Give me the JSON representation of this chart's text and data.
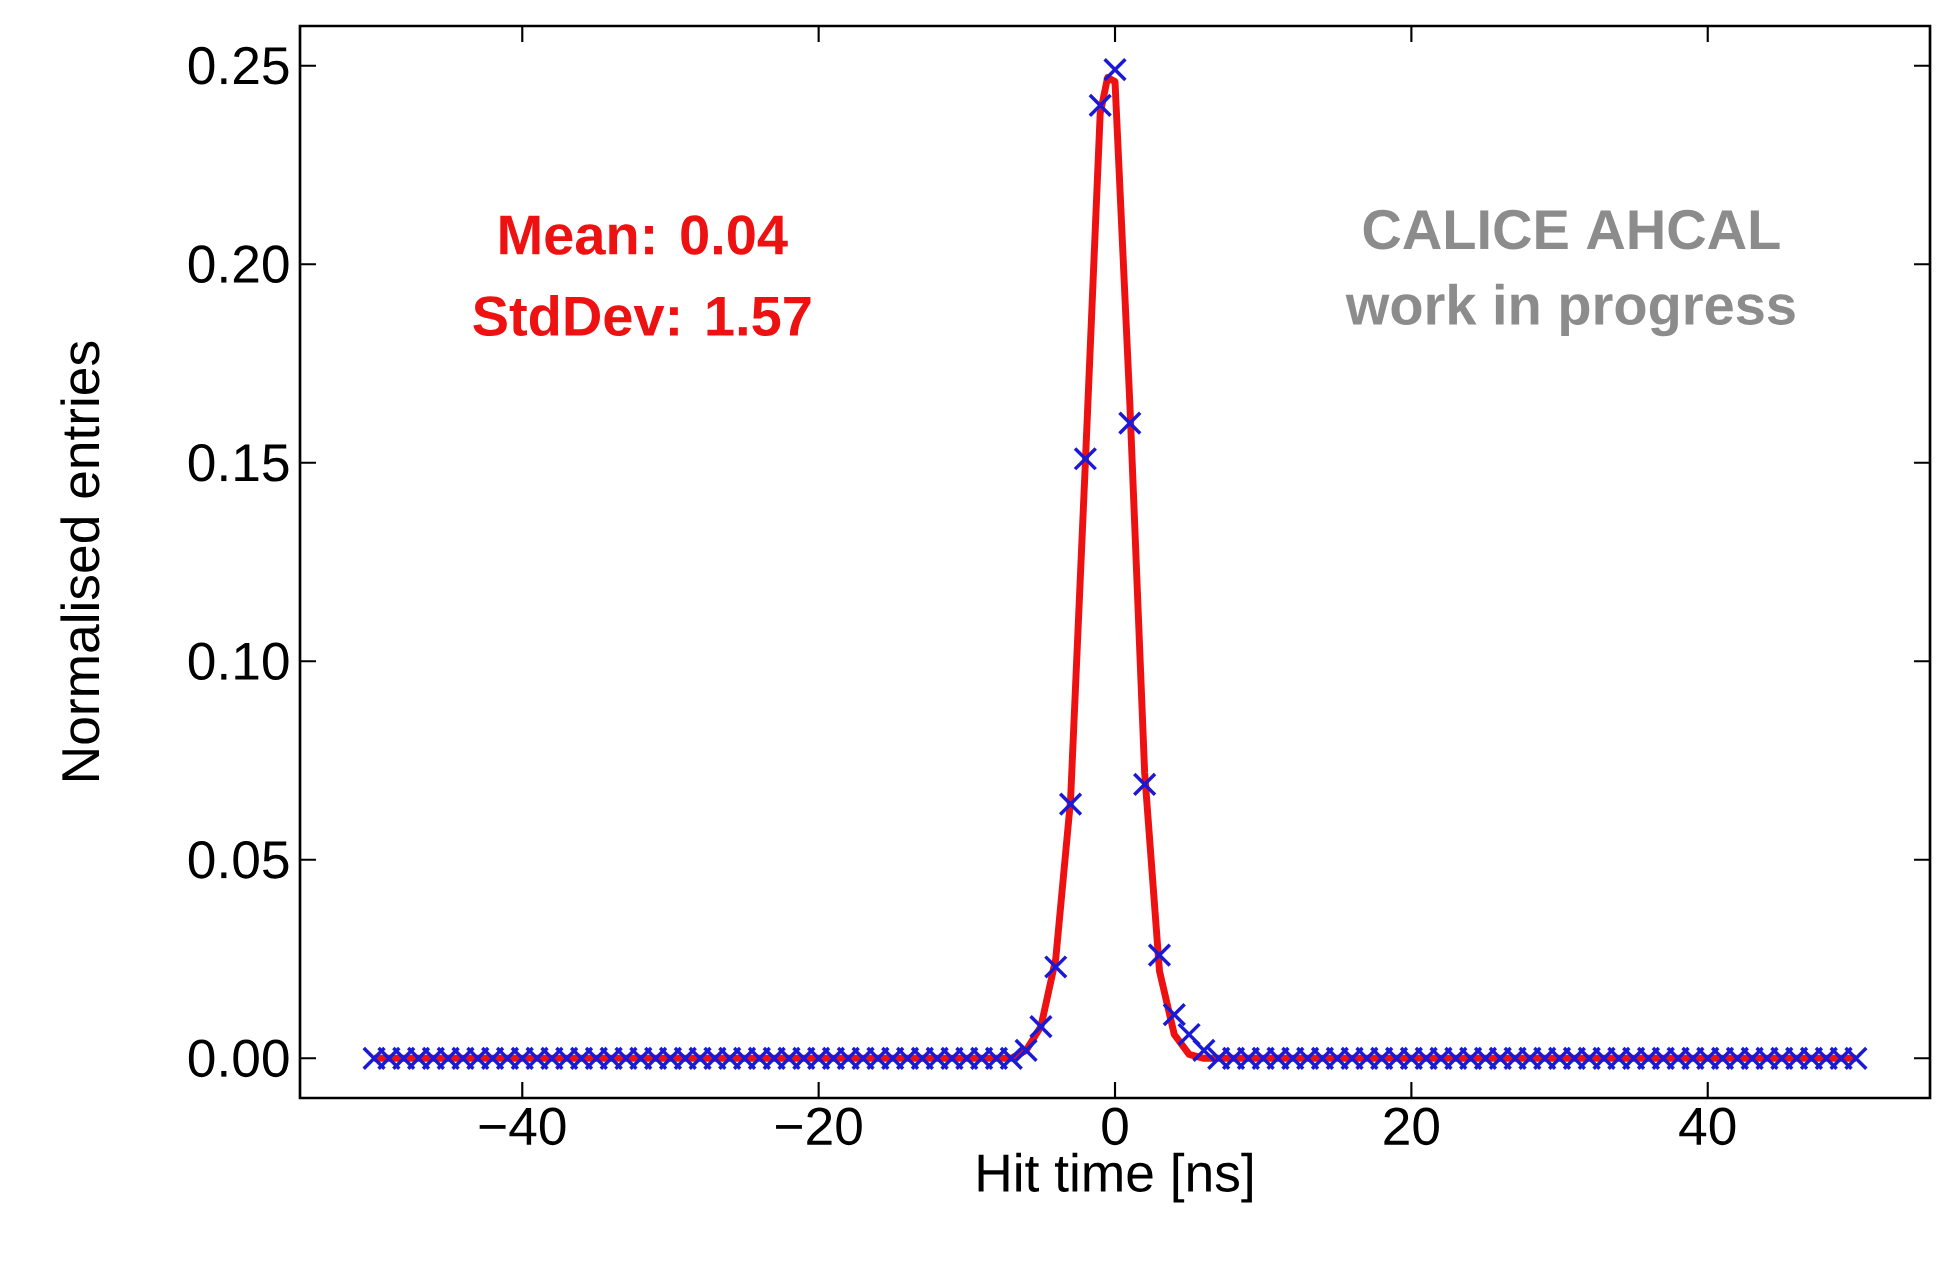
{
  "chart_data": {
    "type": "scatter",
    "xlabel": "Hit time [ns]",
    "ylabel": "Normalised entries",
    "xlim": [
      -55,
      55
    ],
    "ylim": [
      -0.01,
      0.26
    ],
    "xticks": [
      {
        "value": -40,
        "label": "−40"
      },
      {
        "value": -20,
        "label": "−20"
      },
      0,
      20,
      40
    ],
    "yticks": [
      {
        "value": 0,
        "label": "0.00"
      },
      {
        "value": 0.05,
        "label": "0.05"
      },
      {
        "value": 0.1,
        "label": "0.10"
      },
      {
        "value": 0.15,
        "label": "0.15"
      },
      {
        "value": 0.2,
        "label": "0.20"
      },
      {
        "value": 0.25,
        "label": "0.25"
      }
    ],
    "annotations": [
      "Mean: 0.04",
      "StdDev: 1.57",
      "CALICE AHCAL",
      "work in progress"
    ],
    "series": [
      {
        "marker": "cross",
        "color": "#1a1ad6",
        "x": [
          -50,
          -49,
          -48,
          -47,
          -46,
          -45,
          -44,
          -43,
          -42,
          -41,
          -40,
          -39,
          -38,
          -37,
          -36,
          -35,
          -34,
          -33,
          -32,
          -31,
          -30,
          -29,
          -28,
          -27,
          -26,
          -25,
          -24,
          -23,
          -22,
          -21,
          -20,
          -19,
          -18,
          -17,
          -16,
          -15,
          -14,
          -13,
          -12,
          -11,
          -10,
          -9,
          -8,
          -7,
          -6,
          -5,
          -4,
          -3,
          -2,
          -1,
          0,
          1,
          2,
          3,
          4,
          5,
          6,
          7,
          8,
          9,
          10,
          11,
          12,
          13,
          14,
          15,
          16,
          17,
          18,
          19,
          20,
          21,
          22,
          23,
          24,
          25,
          26,
          27,
          28,
          29,
          30,
          31,
          32,
          33,
          34,
          35,
          36,
          37,
          38,
          39,
          40,
          41,
          42,
          43,
          44,
          45,
          46,
          47,
          48,
          49,
          50
        ],
        "values": [
          0,
          0,
          0,
          0,
          0,
          0,
          0,
          0,
          0,
          0,
          0,
          0,
          0,
          0,
          0,
          0,
          0,
          0,
          0,
          0,
          0,
          0,
          0,
          0,
          0,
          0,
          0,
          0,
          0,
          0,
          0,
          0,
          0,
          0,
          0,
          0,
          0,
          0,
          0,
          0,
          0,
          0,
          0,
          0,
          0.002,
          0.008,
          0.023,
          0.064,
          0.151,
          0.24,
          0.249,
          0.16,
          0.069,
          0.026,
          0.011,
          0.006,
          0.002,
          0,
          0,
          0,
          0,
          0,
          0,
          0,
          0,
          0,
          0,
          0,
          0,
          0,
          0,
          0,
          0,
          0,
          0,
          0,
          0,
          0,
          0,
          0,
          0,
          0,
          0,
          0,
          0,
          0,
          0,
          0,
          0,
          0,
          0,
          0,
          0,
          0,
          0,
          0,
          0,
          0,
          0,
          0,
          0
        ]
      },
      {
        "type": "line",
        "marker": "none",
        "line_style": "solid",
        "color": "#ee1111",
        "x": [
          -50,
          -7,
          -6,
          -5,
          -4,
          -3,
          -2,
          -1,
          -0.5,
          0,
          1,
          2,
          3,
          4,
          5,
          6,
          50
        ],
        "values": [
          0,
          0,
          0.002,
          0.008,
          0.025,
          0.065,
          0.15,
          0.238,
          0.247,
          0.246,
          0.165,
          0.072,
          0.022,
          0.006,
          0.001,
          0,
          0
        ]
      }
    ]
  }
}
